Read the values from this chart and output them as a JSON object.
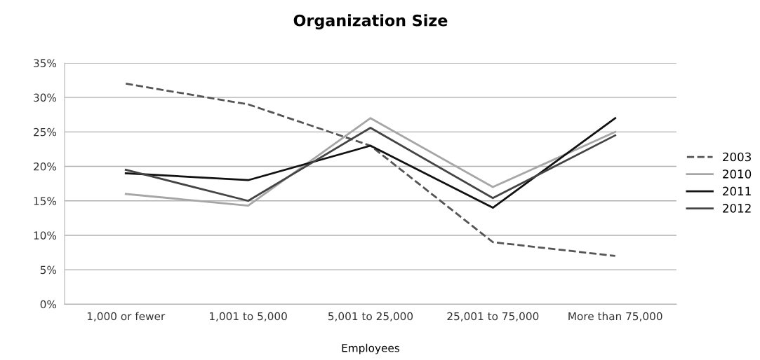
{
  "chart_data": {
    "type": "line",
    "title": "Organization Size",
    "xlabel": "Employees",
    "categories": [
      "1,000 or fewer",
      "1,001 to 5,000",
      "5,001 to 25,000",
      "25,001 to 75,000",
      "More than 75,000"
    ],
    "series": [
      {
        "name": "2003",
        "color": "#555555",
        "line_style": "dashed",
        "values": [
          32,
          29,
          23,
          9,
          7
        ]
      },
      {
        "name": "2010",
        "color": "#a6a6a6",
        "line_style": "solid",
        "values": [
          16,
          14.3,
          27,
          17,
          25
        ]
      },
      {
        "name": "2011",
        "color": "#111111",
        "line_style": "solid",
        "values": [
          19,
          18,
          23,
          14,
          27
        ]
      },
      {
        "name": "2012",
        "color": "#444444",
        "line_style": "solid",
        "values": [
          19.5,
          15,
          25.6,
          15.4,
          24.5
        ]
      }
    ],
    "ylim": [
      0,
      35
    ],
    "yticks": [
      {
        "value": 0,
        "label": "0%"
      },
      {
        "value": 5,
        "label": "5%"
      },
      {
        "value": 10,
        "label": "10%"
      },
      {
        "value": 15,
        "label": "15%"
      },
      {
        "value": 20,
        "label": "20%"
      },
      {
        "value": 25,
        "label": "25%"
      },
      {
        "value": 30,
        "label": "30%"
      },
      {
        "value": 35,
        "label": "35%"
      }
    ],
    "grid": "y",
    "legend": "right",
    "marker": "none"
  }
}
